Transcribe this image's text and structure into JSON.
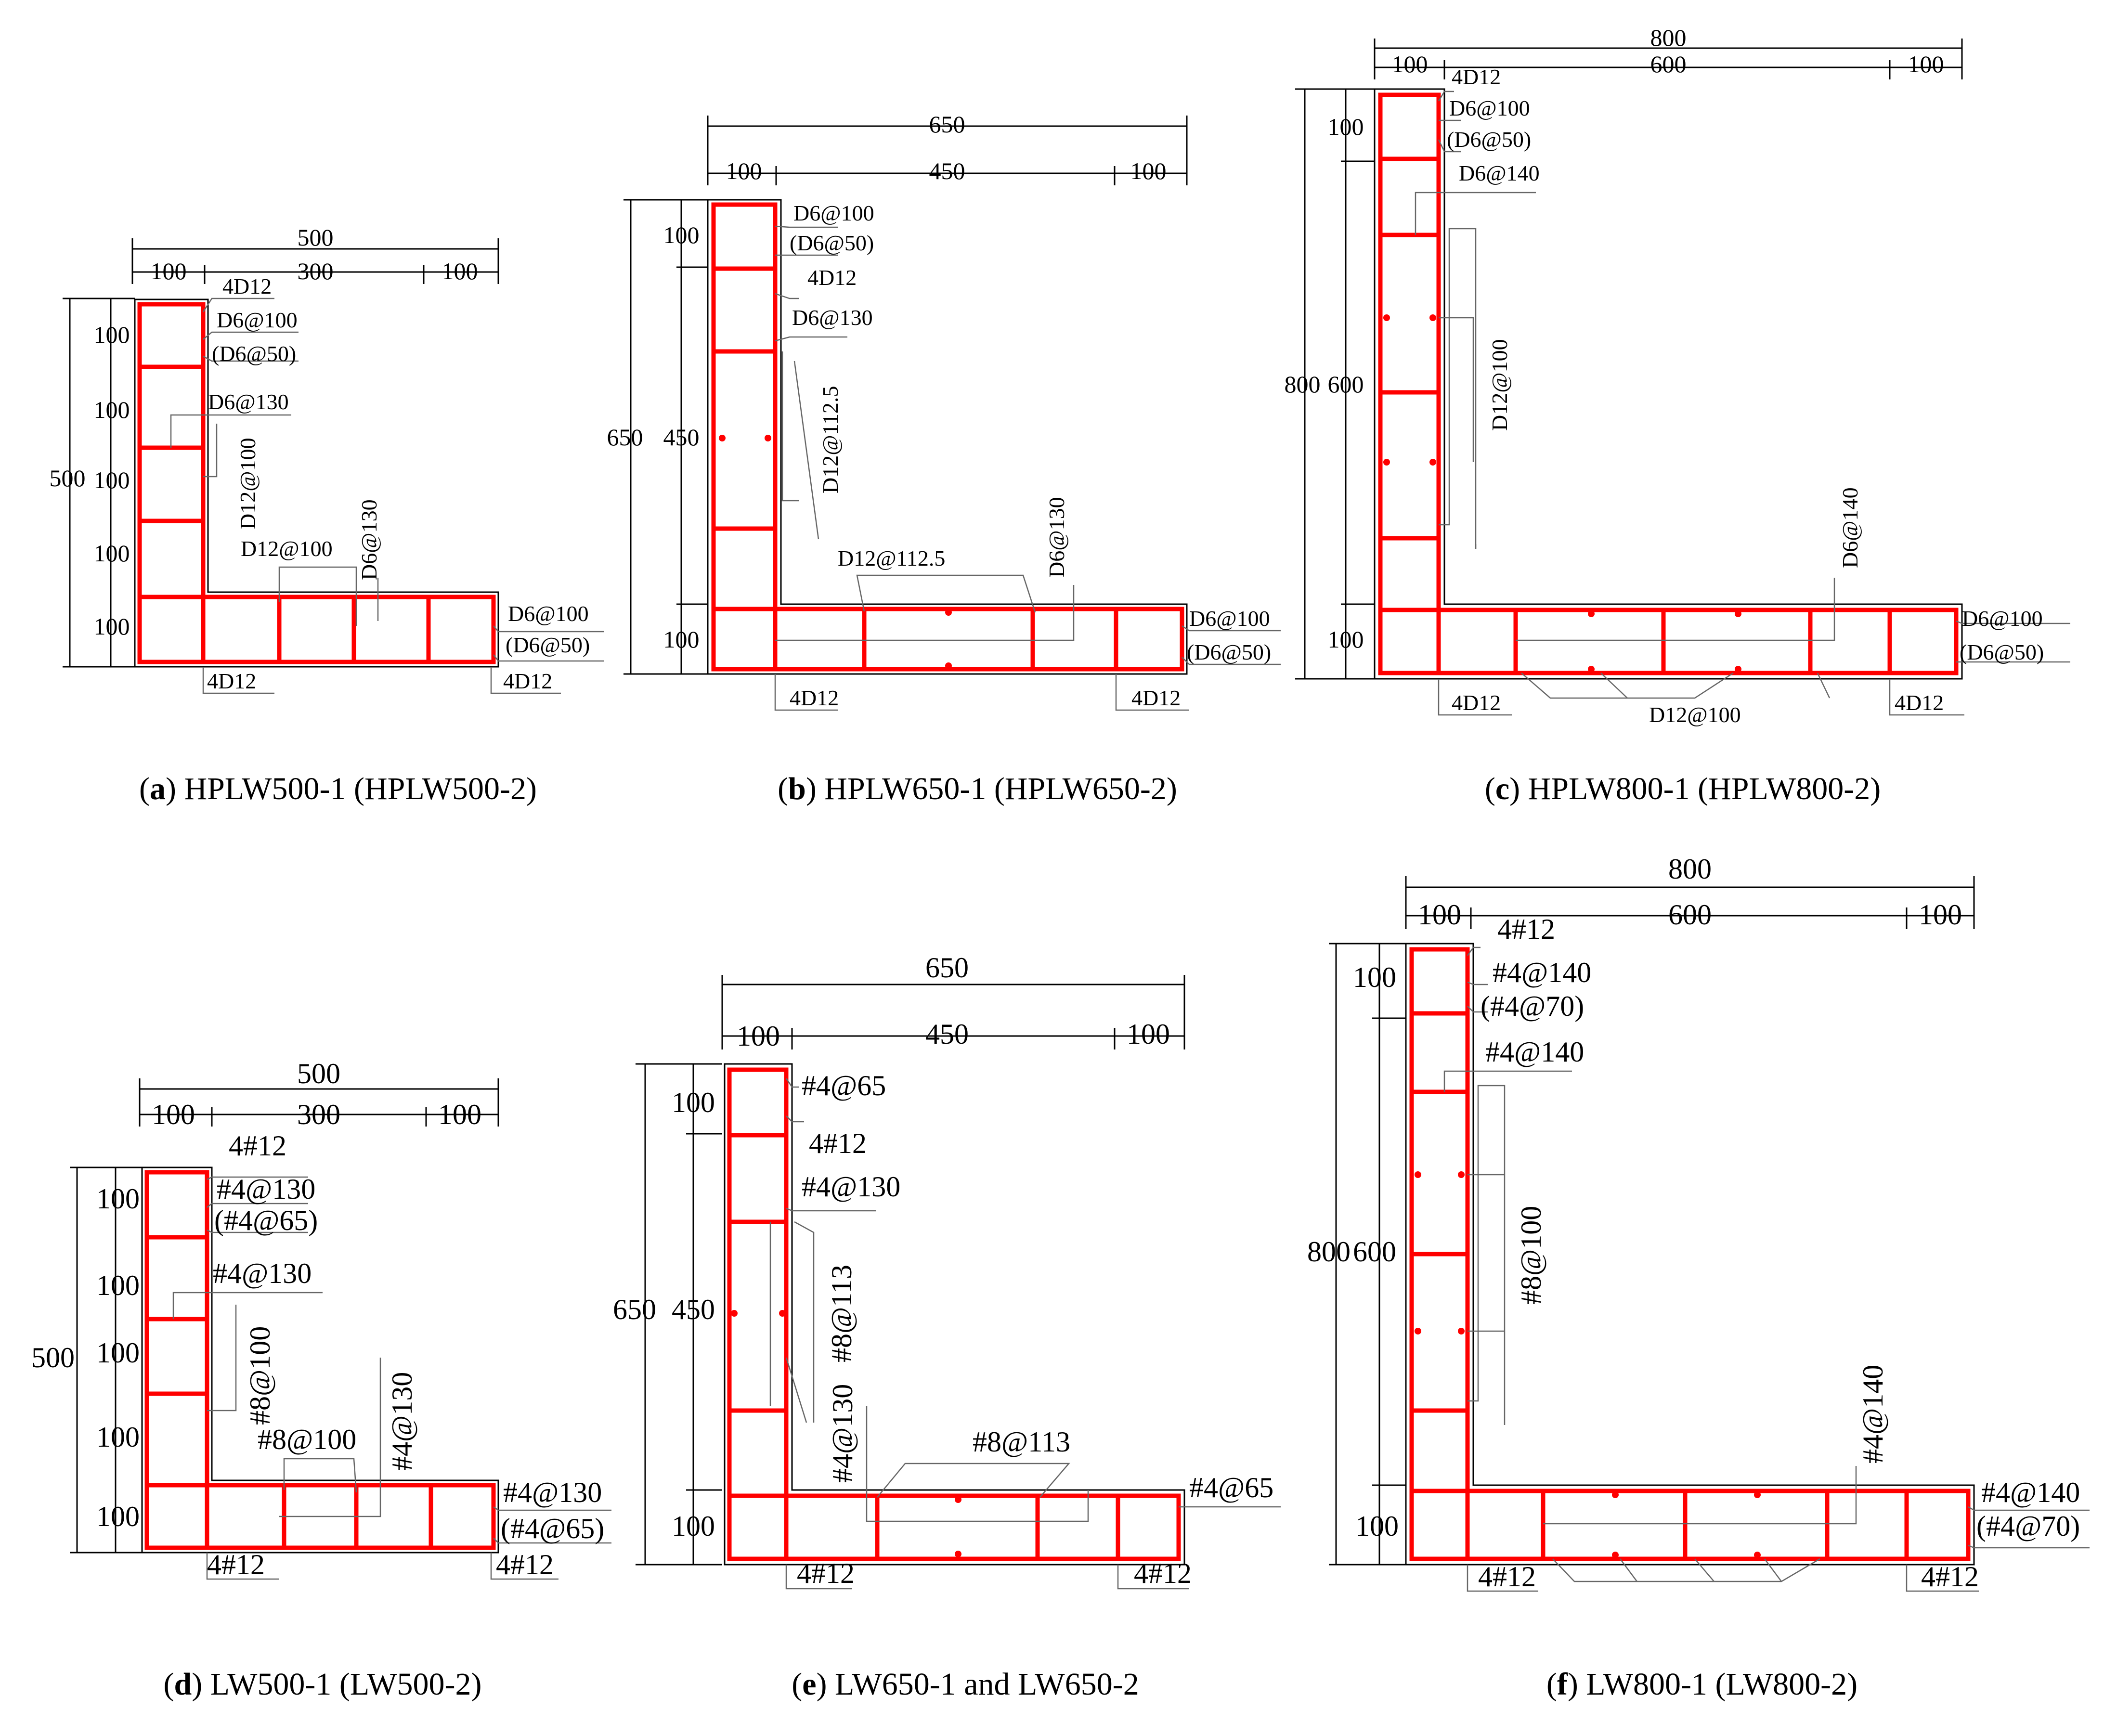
{
  "panels": [
    {
      "id": "a",
      "caption_letter": "a",
      "caption_text": "HPLW500-1 (HPLW500-2)",
      "top_dims": {
        "total": "500",
        "left": "100",
        "mid": "300",
        "right": "100"
      },
      "left_dims": {
        "total": "500",
        "segs": [
          "100",
          "100",
          "100",
          "100",
          "100"
        ]
      },
      "labels": [
        "4D12",
        "D6@100",
        "(D6@50)",
        "D6@130",
        "D12@100",
        "D12@100",
        "D6@130",
        "D6@100",
        "(D6@50)",
        "4D12",
        "4D12"
      ]
    },
    {
      "id": "b",
      "caption_letter": "b",
      "caption_text": "HPLW650-1 (HPLW650-2)",
      "top_dims": {
        "total": "650",
        "left": "100",
        "mid": "450",
        "right": "100"
      },
      "left_dims": {
        "total": "650",
        "segs": [
          "100",
          "450",
          "100"
        ]
      },
      "labels": [
        "D6@100",
        "(D6@50)",
        "4D12",
        "D6@130",
        "D12@112.5",
        "D12@112.5",
        "D6@130",
        "D6@100",
        "(D6@50)",
        "4D12",
        "4D12"
      ]
    },
    {
      "id": "c",
      "caption_letter": "c",
      "caption_text": "HPLW800-1 (HPLW800-2)",
      "top_dims": {
        "total": "800",
        "left": "100",
        "mid": "600",
        "right": "100"
      },
      "left_dims": {
        "total": "800",
        "segs": [
          "100",
          "600",
          "100"
        ]
      },
      "labels": [
        "4D12",
        "D6@100",
        "(D6@50)",
        "D6@140",
        "D12@100",
        "D6@140",
        "D6@100",
        "(D6@50)",
        "4D12",
        "D12@100",
        "4D12"
      ]
    },
    {
      "id": "d",
      "caption_letter": "d",
      "caption_text": "LW500-1 (LW500-2)",
      "top_dims": {
        "total": "500",
        "left": "100",
        "mid": "300",
        "right": "100"
      },
      "left_dims": {
        "total": "500",
        "segs": [
          "100",
          "100",
          "100",
          "100",
          "100"
        ]
      },
      "labels": [
        "4#12",
        "#4@130",
        "(#4@65)",
        "#4@130",
        "#8@100",
        "#8@100",
        "#4@130",
        "#4@130",
        "(#4@65)",
        "4#12",
        "4#12"
      ]
    },
    {
      "id": "e",
      "caption_letter": "e",
      "caption_text": "LW650-1 and LW650-2",
      "top_dims": {
        "total": "650",
        "left": "100",
        "mid": "450",
        "right": "100"
      },
      "left_dims": {
        "total": "650",
        "segs": [
          "100",
          "450",
          "100"
        ]
      },
      "labels": [
        "#4@65",
        "4#12",
        "#4@130",
        "#8@113",
        "#4@130",
        "#8@113",
        "#4@65",
        "4#12",
        "4#12"
      ]
    },
    {
      "id": "f",
      "caption_letter": "f",
      "caption_text": "LW800-1 (LW800-2)",
      "top_dims": {
        "total": "800",
        "left": "100",
        "mid": "600",
        "right": "100"
      },
      "left_dims": {
        "total": "800",
        "segs": [
          "100",
          "600",
          "100"
        ]
      },
      "labels": [
        "4#12",
        "#4@140",
        "(#4@70)",
        "#4@140",
        "#8@100",
        "#4@140",
        "#4@140",
        "(#4@70)",
        "4#12",
        "4#12"
      ]
    }
  ],
  "colors": {
    "rebar": "#ff0000",
    "outline": "#000000",
    "leader": "#666666"
  }
}
